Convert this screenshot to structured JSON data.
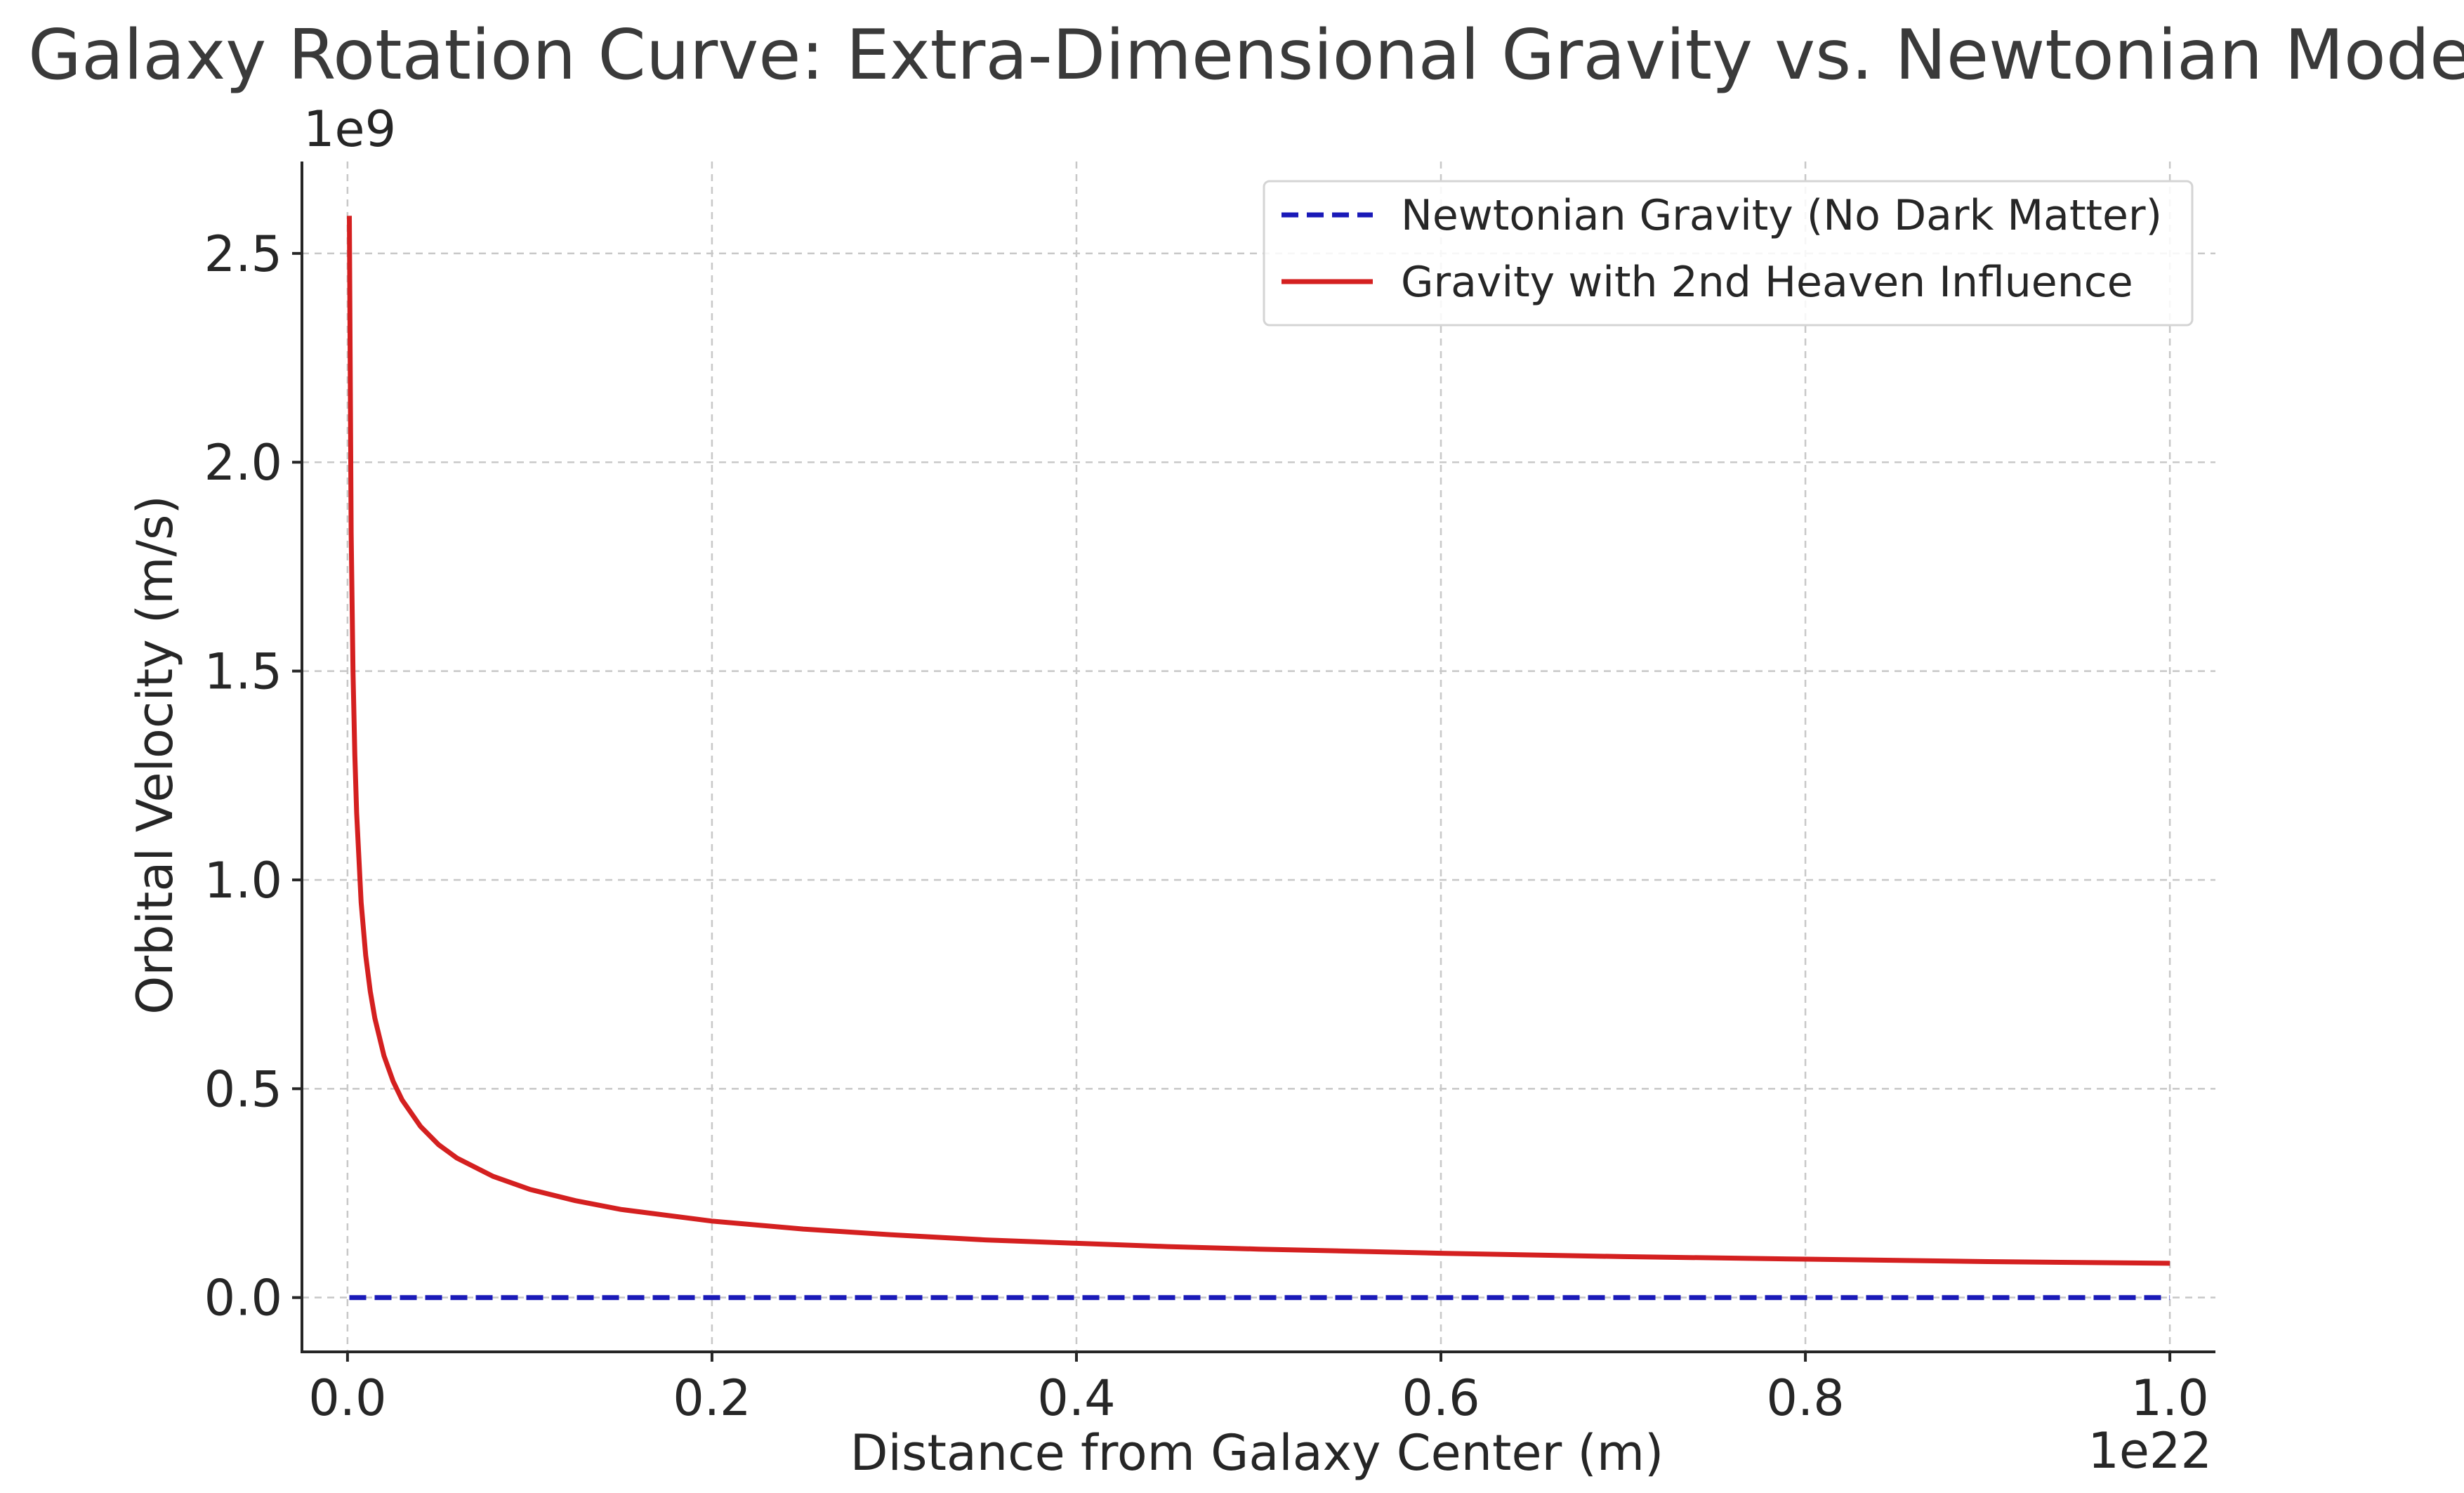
{
  "chart_data": {
    "type": "line",
    "title": "Galaxy Rotation Curve: Extra-Dimensional Gravity vs. Newtonian Mode",
    "xlabel": "Distance from Galaxy Center (m)",
    "ylabel": "Orbital Velocity (m/s)",
    "x_offset_label": "1e22",
    "y_offset_label": "1e9",
    "xlim": [
      -0.025,
      1.025
    ],
    "ylim": [
      -0.13,
      2.72
    ],
    "x_ticks": [
      0.0,
      0.2,
      0.4,
      0.6,
      0.8,
      1.0
    ],
    "x_tick_labels": [
      "0.0",
      "0.2",
      "0.4",
      "0.6",
      "0.8",
      "1.0"
    ],
    "y_ticks": [
      0.0,
      0.5,
      1.0,
      1.5,
      2.0,
      2.5
    ],
    "y_tick_labels": [
      "0.0",
      "0.5",
      "1.0",
      "1.5",
      "2.0",
      "2.5"
    ],
    "grid": true,
    "legend_position": "top-right",
    "series": [
      {
        "name": "Newtonian Gravity (No Dark Matter)",
        "color": "#1a1ab8",
        "style": "dashed",
        "x": [
          0.001,
          0.1,
          0.2,
          0.3,
          0.4,
          0.5,
          0.6,
          0.7,
          0.8,
          0.9,
          1.0
        ],
        "y": [
          0.0,
          0.0,
          0.0,
          0.0,
          0.0,
          0.0,
          0.0,
          0.0,
          0.0,
          0.0,
          0.0
        ]
      },
      {
        "name": "Gravity with 2nd Heaven Influence",
        "color": "#d42020",
        "style": "solid",
        "x": [
          0.001,
          0.002,
          0.003,
          0.004,
          0.005,
          0.0075,
          0.01,
          0.0125,
          0.015,
          0.02,
          0.025,
          0.03,
          0.04,
          0.05,
          0.06,
          0.08,
          0.1,
          0.125,
          0.15,
          0.2,
          0.25,
          0.3,
          0.35,
          0.4,
          0.45,
          0.5,
          0.6,
          0.7,
          0.8,
          0.9,
          1.0
        ],
        "y": [
          2.59,
          1.83,
          1.5,
          1.3,
          1.16,
          0.946,
          0.819,
          0.733,
          0.669,
          0.579,
          0.518,
          0.473,
          0.41,
          0.366,
          0.334,
          0.29,
          0.259,
          0.232,
          0.211,
          0.183,
          0.164,
          0.15,
          0.138,
          0.13,
          0.122,
          0.116,
          0.106,
          0.098,
          0.092,
          0.086,
          0.082
        ]
      }
    ]
  }
}
